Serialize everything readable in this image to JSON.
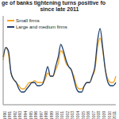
{
  "chart_data": {
    "type": "line",
    "title": "ge of banks tightening turns positive fo",
    "subtitle": "since late 2011",
    "categories": [
      "1990",
      null,
      "1991",
      null,
      "1992",
      null,
      "1993",
      null,
      "1994",
      null,
      "1995",
      null,
      "1996",
      null,
      "1997",
      null,
      "1998",
      null,
      "1999",
      null,
      "2000",
      null,
      "2001",
      null,
      "2002",
      null,
      "2003",
      null,
      "2004",
      null,
      "2005",
      null,
      "2006",
      null,
      "2007",
      null,
      "2008",
      null,
      "2009",
      null,
      "2010",
      null,
      "2011",
      null
    ],
    "series": [
      {
        "name": "Small firms",
        "color": "#f5a623",
        "values": [
          30,
          50,
          40,
          10,
          0,
          -5,
          -10,
          -15,
          -15,
          -10,
          -5,
          -5,
          -2,
          -5,
          -5,
          -5,
          0,
          10,
          5,
          5,
          15,
          25,
          45,
          40,
          25,
          20,
          15,
          5,
          -10,
          -15,
          -15,
          -10,
          -5,
          -5,
          5,
          15,
          50,
          65,
          45,
          15,
          0,
          -5,
          -5,
          5
        ]
      },
      {
        "name": "Large and medium firms",
        "color": "#1f3f6e",
        "values": [
          35,
          50,
          45,
          10,
          0,
          -5,
          -15,
          -20,
          -20,
          -15,
          -10,
          -5,
          -5,
          -10,
          -10,
          -8,
          5,
          20,
          5,
          5,
          20,
          35,
          55,
          45,
          30,
          20,
          15,
          0,
          -15,
          -20,
          -20,
          -10,
          -5,
          -5,
          5,
          20,
          60,
          80,
          50,
          15,
          -5,
          -10,
          -10,
          -5
        ]
      }
    ],
    "ylim": [
      -40,
      100
    ],
    "grid": false,
    "legend": "top-left",
    "tick_labels": "x"
  }
}
